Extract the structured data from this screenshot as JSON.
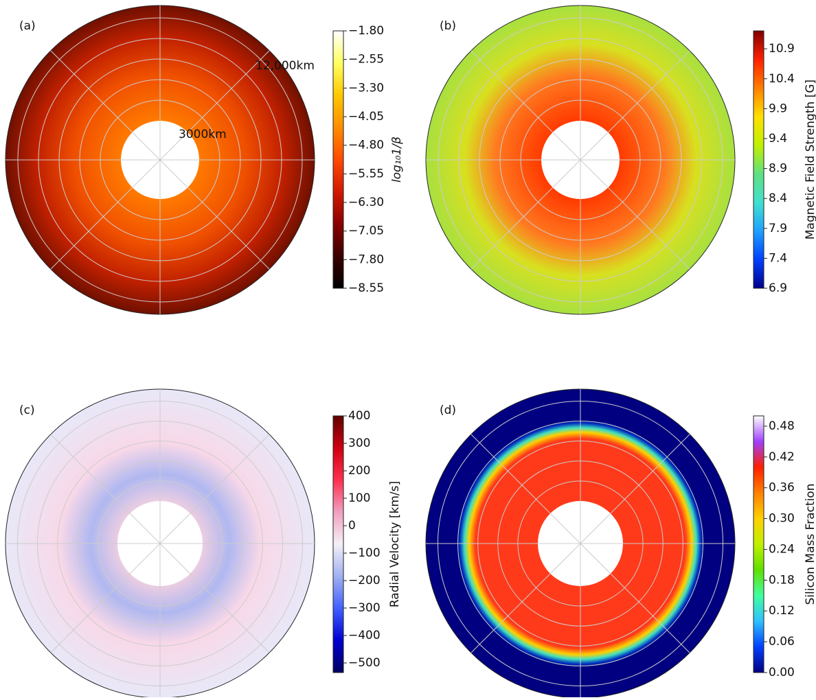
{
  "chart_data": [
    {
      "type": "polar-heatmap",
      "panel_label": "(a)",
      "annotations": [
        "12,000km",
        "3000km"
      ],
      "colorbar": {
        "label": "log₁₀1/β",
        "lim": [
          -8.55,
          -1.8
        ],
        "ticks": [
          {
            "value": -1.8,
            "label": "−1.80"
          },
          {
            "value": -2.55,
            "label": "−2.55"
          },
          {
            "value": -3.3,
            "label": "−3.30"
          },
          {
            "value": -4.05,
            "label": "−4.05"
          },
          {
            "value": -4.8,
            "label": "−4.80"
          },
          {
            "value": -5.55,
            "label": "−5.55"
          },
          {
            "value": -6.3,
            "label": "−6.30"
          },
          {
            "value": -7.05,
            "label": "−7.05"
          },
          {
            "value": -7.8,
            "label": "−7.80"
          },
          {
            "value": -8.55,
            "label": "−8.55"
          }
        ],
        "colors": [
          "#000000",
          "#3a0000",
          "#8b0000",
          "#d21a00",
          "#ff4a00",
          "#ff8c00",
          "#ffc800",
          "#ffff60",
          "#ffffff"
        ]
      }
    },
    {
      "type": "polar-heatmap",
      "panel_label": "(b)",
      "colorbar": {
        "label": "Magnetic Field Strength [G]",
        "lim": [
          6.9,
          11.2
        ],
        "ticks": [
          10.9,
          10.4,
          9.9,
          9.4,
          8.9,
          8.4,
          7.9,
          7.4,
          6.9
        ],
        "colors": [
          "#00008b",
          "#0040ff",
          "#20a0ff",
          "#40e0d0",
          "#60e080",
          "#c0f000",
          "#ffe000",
          "#ff8000",
          "#ff2000",
          "#800000"
        ]
      }
    },
    {
      "type": "polar-heatmap",
      "panel_label": "(c)",
      "colorbar": {
        "label": "Radial Velocity [km/s]",
        "lim": [
          -535,
          400
        ],
        "ticks": [
          400,
          300,
          200,
          100,
          0,
          {
            "value": -100,
            "label": "−100"
          },
          {
            "value": -200,
            "label": "−200"
          },
          {
            "value": -300,
            "label": "−300"
          },
          {
            "value": -400,
            "label": "−400"
          },
          {
            "value": -500,
            "label": "−500"
          }
        ],
        "colors": [
          "#000060",
          "#0000d0",
          "#4060ff",
          "#a0b0f0",
          "#f4f0f8",
          "#f0a0c0",
          "#ff3050",
          "#d00010",
          "#600000"
        ]
      }
    },
    {
      "type": "polar-heatmap",
      "panel_label": "(d)",
      "colorbar": {
        "label": "Silicon Mass Fraction",
        "lim": [
          0,
          0.5
        ],
        "ticks": [
          0.48,
          0.42,
          {
            "value": 0.36,
            "label": "0.36"
          },
          {
            "value": 0.3,
            "label": "0.30"
          },
          0.24,
          0.18,
          0.12,
          0.06,
          {
            "value": 0,
            "label": "0.00"
          }
        ],
        "colors": [
          "#000080",
          "#0040ff",
          "#30c0ff",
          "#40ffa0",
          "#60e000",
          "#c0f000",
          "#ffd000",
          "#ff8000",
          "#ff2000",
          "#a040ff",
          "#ffffff"
        ]
      }
    }
  ]
}
